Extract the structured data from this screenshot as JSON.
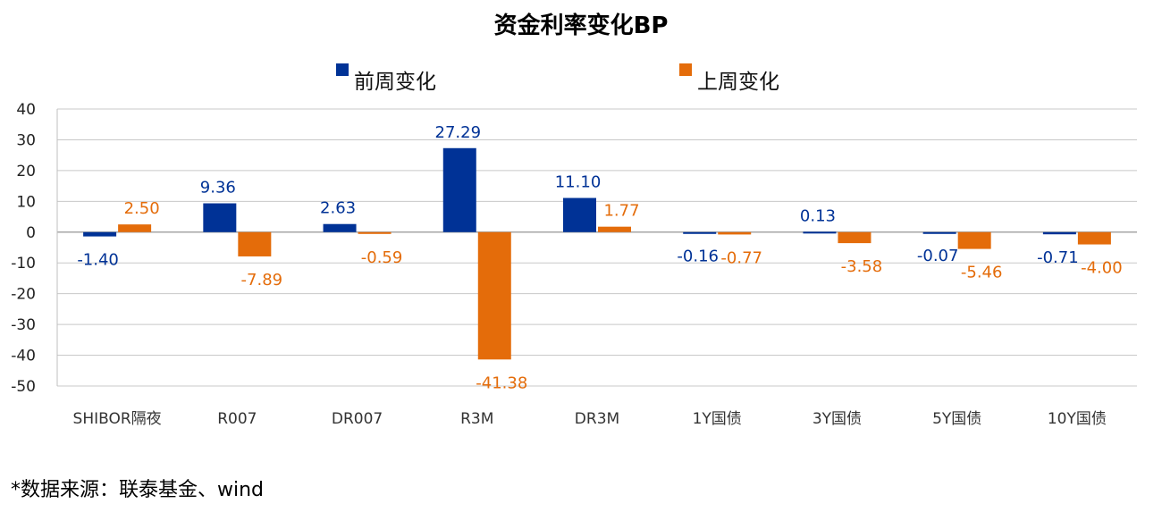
{
  "title": "资金利率变化BP",
  "source_note": "*数据来源：联泰基金、wind",
  "colors": {
    "series1": "#003296",
    "series2": "#E46C0A",
    "grid": "#c8c8c8",
    "axis": "#bfbfbf"
  },
  "chart_data": {
    "type": "bar",
    "title": "资金利率变化BP",
    "categories": [
      "SHIBOR隔夜",
      "R007",
      "DR007",
      "R3M",
      "DR3M",
      "1Y国债",
      "3Y国债",
      "5Y国债",
      "10Y国债"
    ],
    "series": [
      {
        "name": "前周变化",
        "values": [
          -1.4,
          9.36,
          2.63,
          27.29,
          11.1,
          -0.16,
          0.13,
          -0.07,
          -0.71
        ]
      },
      {
        "name": "上周变化",
        "values": [
          2.5,
          -7.89,
          -0.59,
          -41.38,
          1.77,
          -0.77,
          -3.58,
          -5.46,
          -4.0
        ]
      }
    ],
    "ylim": [
      -50,
      40
    ],
    "yticks": [
      40,
      30,
      20,
      10,
      0,
      -10,
      -20,
      -30,
      -40,
      -50
    ],
    "grid": true,
    "legend_position": "top"
  }
}
